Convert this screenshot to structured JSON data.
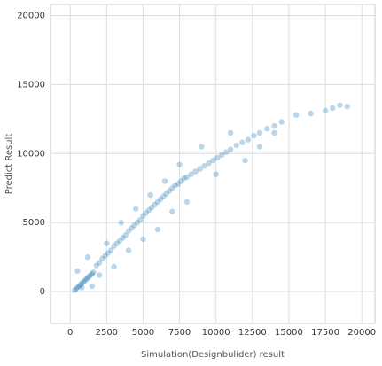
{
  "chart_data": {
    "type": "scatter",
    "xlabel": "Simulation(Designbulider) result",
    "ylabel": "Predict Result",
    "xlim": [
      -1350,
      20900
    ],
    "ylim": [
      -2300,
      20800
    ],
    "xticks": [
      0,
      2500,
      5000,
      7500,
      10000,
      12500,
      15000,
      17500,
      20000
    ],
    "yticks": [
      0,
      5000,
      10000,
      15000,
      20000
    ],
    "grid": true,
    "series": [
      {
        "color": "#1f77b4",
        "x": [
          300,
          400,
          500,
          600,
          700,
          800,
          900,
          1000,
          1100,
          1200,
          1300,
          1400,
          1500,
          1600,
          1800,
          2000,
          2200,
          2400,
          2600,
          2800,
          3000,
          3200,
          3400,
          3600,
          3800,
          4000,
          4200,
          4400,
          4600,
          4800,
          5000,
          5200,
          5400,
          5600,
          5800,
          6000,
          6200,
          6400,
          6600,
          6800,
          7000,
          7200,
          7400,
          7600,
          7800,
          8000,
          8300,
          8600,
          8900,
          9200,
          9500,
          9800,
          10100,
          10400,
          10700,
          11000,
          11400,
          11800,
          12200,
          12600,
          13000,
          13500,
          14000,
          14500,
          15500,
          16500,
          17500,
          18000,
          18500,
          19000,
          500,
          800,
          1200,
          1500,
          2000,
          2500,
          3000,
          3500,
          4000,
          4500,
          5000,
          5500,
          6000,
          6500,
          7000,
          7500,
          8000,
          9000,
          10000,
          11000,
          12000,
          13000,
          14000
        ],
        "y": [
          100,
          200,
          300,
          400,
          500,
          600,
          700,
          800,
          900,
          1000,
          1100,
          1200,
          1300,
          1400,
          1900,
          2100,
          2400,
          2600,
          2800,
          3000,
          3300,
          3500,
          3700,
          3900,
          4100,
          4400,
          4600,
          4800,
          5000,
          5200,
          5500,
          5700,
          5900,
          6100,
          6300,
          6500,
          6700,
          6900,
          7100,
          7300,
          7500,
          7700,
          7800,
          8000,
          8200,
          8300,
          8500,
          8700,
          8900,
          9100,
          9300,
          9500,
          9700,
          9900,
          10100,
          10300,
          10600,
          10800,
          11000,
          11300,
          11500,
          11800,
          12000,
          12300,
          12800,
          12900,
          13100,
          13300,
          13500,
          13400,
          1500,
          300,
          2500,
          400,
          1200,
          3500,
          1800,
          5000,
          3000,
          6000,
          3800,
          7000,
          4500,
          8000,
          5800,
          9200,
          6500,
          10500,
          8500,
          11500,
          9500,
          10500,
          11500
        ]
      }
    ]
  }
}
